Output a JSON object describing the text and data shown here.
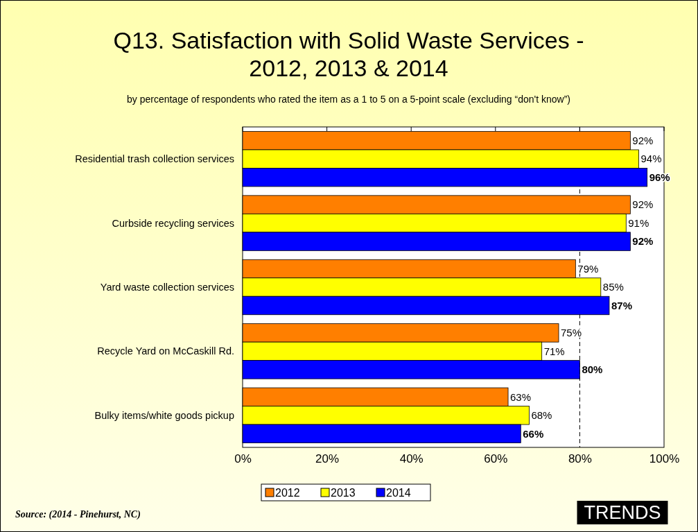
{
  "chart_data": {
    "type": "bar",
    "orientation": "horizontal",
    "title": "Q13. Satisfaction with Solid Waste Services - 2012, 2013 & 2014",
    "subtitle": "by percentage of respondents who rated the item as a 1 to 5 on a 5-point scale (excluding “don't know”)",
    "categories": [
      "Residential trash collection services",
      "Curbside recycling services",
      "Yard waste collection services",
      "Recycle Yard on McCaskill Rd.",
      "Bulky items/white goods pickup"
    ],
    "series": [
      {
        "name": "2012",
        "color": "#ff7f00",
        "values": [
          92,
          92,
          79,
          75,
          63
        ],
        "value_labels": [
          "92%",
          "92%",
          "79%",
          "75%",
          "63%"
        ]
      },
      {
        "name": "2013",
        "color": "#ffff00",
        "values": [
          94,
          91,
          85,
          71,
          68
        ],
        "value_labels": [
          "94%",
          "91%",
          "85%",
          "71%",
          "68%"
        ]
      },
      {
        "name": "2014",
        "color": "#0000ff",
        "values": [
          96,
          92,
          87,
          80,
          66
        ],
        "value_labels": [
          "96%",
          "92%",
          "87%",
          "80%",
          "66%"
        ]
      }
    ],
    "xlim": [
      0,
      100
    ],
    "xticks": [
      {
        "value": 0,
        "label": "0%"
      },
      {
        "value": 20,
        "label": "20%"
      },
      {
        "value": 40,
        "label": "40%"
      },
      {
        "value": 60,
        "label": "60%"
      },
      {
        "value": 80,
        "label": "80%"
      },
      {
        "value": 100,
        "label": "100%"
      }
    ],
    "ref_lines": [
      {
        "axis": "x",
        "value": 80,
        "line_style": "dashed",
        "color": "#000000"
      }
    ],
    "legend": "bottom",
    "annotations": [
      "Source: (2014 - Pinehurst, NC)",
      "TRENDS"
    ]
  }
}
